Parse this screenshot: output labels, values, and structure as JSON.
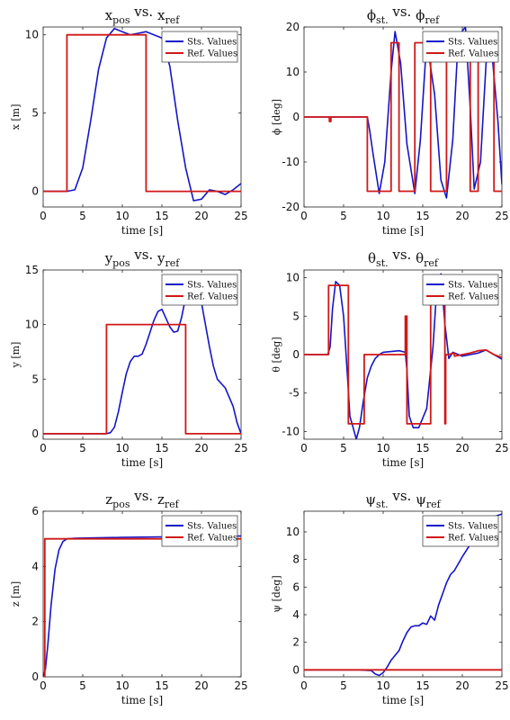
{
  "colors": {
    "sts": "#1515c8",
    "ref": "#d01818"
  },
  "legend": {
    "sts": "Sts. Values",
    "ref": "Ref. Values"
  },
  "chart_data": [
    {
      "type": "line",
      "title": {
        "base": "x",
        "sub": "pos",
        "mid": " vs. ",
        "base2": "x",
        "sub2": "ref"
      },
      "xlabel": "time [s]",
      "ylabel": "x [m]",
      "xlim": [
        0,
        25
      ],
      "ylim": [
        -1,
        10.5
      ],
      "xticks": [
        "0",
        "5",
        "10",
        "15",
        "20",
        "25"
      ],
      "yticks": [
        "0",
        "5",
        "10"
      ],
      "legend_position": "top-right",
      "series": [
        {
          "name": "Sts. Values",
          "x": [
            0,
            2,
            3,
            4,
            5,
            6,
            7,
            8,
            9,
            10,
            11,
            12,
            13,
            14,
            15,
            16,
            17,
            18,
            19,
            20,
            21,
            22,
            23,
            24,
            25
          ],
          "y": [
            0,
            0,
            0,
            0.1,
            1.5,
            4.5,
            7.8,
            9.8,
            10.4,
            10.2,
            10,
            10.1,
            10.2,
            10,
            9.8,
            8,
            4.5,
            1.5,
            -0.6,
            -0.5,
            0.1,
            0,
            -0.2,
            0.1,
            0.5
          ]
        },
        {
          "name": "Ref. Values",
          "x": [
            0,
            3,
            3,
            13,
            13,
            25
          ],
          "y": [
            0,
            0,
            10,
            10,
            0,
            0
          ]
        }
      ]
    },
    {
      "type": "line",
      "title": {
        "base": "ϕ",
        "sub": "st.",
        "mid": " vs. ",
        "base2": "ϕ",
        "sub2": "ref"
      },
      "xlabel": "time [s]",
      "ylabel": "ϕ [deg]",
      "xlim": [
        0,
        25
      ],
      "ylim": [
        -20,
        20
      ],
      "xticks": [
        "0",
        "5",
        "10",
        "15",
        "20",
        "25"
      ],
      "yticks": [
        "-20",
        "-10",
        "0",
        "10",
        "20"
      ],
      "legend_position": "top-right",
      "series": [
        {
          "name": "Sts. Values",
          "x": [
            0,
            8,
            8.3,
            8.7,
            9.5,
            10.2,
            11,
            11.5,
            12.2,
            13,
            14,
            14.7,
            15.5,
            16.5,
            17.3,
            18,
            18.8,
            19.5,
            20.4,
            21,
            21.5,
            22.3,
            23,
            23.7,
            24.5,
            25
          ],
          "y": [
            0,
            0,
            -3,
            -8,
            -17,
            -10,
            10,
            19,
            12,
            -6,
            -17,
            -5,
            17,
            5,
            -14,
            -18,
            -5,
            18,
            20,
            2,
            -16,
            -10,
            12,
            15,
            -1,
            -15
          ]
        },
        {
          "name": "Ref. Values",
          "x": [
            0,
            3.2,
            3.2,
            3.4,
            3.4,
            8,
            8,
            10,
            10,
            11,
            11,
            12,
            12,
            13,
            13,
            14,
            14,
            15,
            15,
            16,
            16,
            17,
            17,
            18,
            18,
            19,
            19,
            20,
            20,
            21,
            21,
            22,
            22,
            23,
            23,
            24,
            24,
            25
          ],
          "y": [
            0,
            0,
            -1,
            -1,
            0,
            0,
            -16.5,
            -16.5,
            -16.5,
            -16.5,
            16.5,
            16.5,
            -16.5,
            -16.5,
            -16.5,
            -16.5,
            16.5,
            16.5,
            16.5,
            16.5,
            -16.5,
            -16.5,
            -16.5,
            -16.5,
            16.5,
            16.5,
            16.5,
            16.5,
            16.5,
            16.5,
            -16.5,
            -16.5,
            16.5,
            16.5,
            16.5,
            16.5,
            -16.5,
            -16.5
          ]
        }
      ]
    },
    {
      "type": "line",
      "title": {
        "base": "y",
        "sub": "pos",
        "mid": " vs. ",
        "base2": "y",
        "sub2": "ref"
      },
      "xlabel": "time [s]",
      "ylabel": "y [m]",
      "xlim": [
        0,
        25
      ],
      "ylim": [
        -0.5,
        15
      ],
      "xticks": [
        "0",
        "5",
        "10",
        "15",
        "20",
        "25"
      ],
      "yticks": [
        "0",
        "5",
        "10",
        "15"
      ],
      "legend_position": "top-right",
      "series": [
        {
          "name": "Sts. Values",
          "x": [
            0,
            8,
            8.5,
            9,
            9.5,
            10,
            10.5,
            11,
            11.5,
            12,
            12.5,
            13,
            13.5,
            14,
            14.5,
            15,
            15.5,
            16,
            16.5,
            17,
            17.5,
            18,
            18.5,
            19,
            20,
            21,
            21.5,
            22,
            23,
            24,
            24.5,
            25
          ],
          "y": [
            0,
            0,
            0.1,
            0.6,
            2,
            3.8,
            5.5,
            6.6,
            7.1,
            7.1,
            7.3,
            8.2,
            9.3,
            10.4,
            11.2,
            11.4,
            10.6,
            9.8,
            9.3,
            9.4,
            10.7,
            12.5,
            14,
            14.3,
            12,
            8,
            6.2,
            5,
            4.2,
            2.5,
            1,
            0
          ]
        },
        {
          "name": "Ref. Values",
          "x": [
            0,
            8,
            8,
            18,
            18,
            25
          ],
          "y": [
            0,
            0,
            10,
            10,
            0,
            0
          ]
        }
      ]
    },
    {
      "type": "line",
      "title": {
        "base": "θ",
        "sub": "st.",
        "mid": " vs. ",
        "base2": "θ",
        "sub2": "ref"
      },
      "xlabel": "time [s]",
      "ylabel": "θ [deg]",
      "xlim": [
        0,
        25
      ],
      "ylim": [
        -11,
        11
      ],
      "xticks": [
        "0",
        "5",
        "10",
        "15",
        "20",
        "25"
      ],
      "yticks": [
        "-10",
        "-5",
        "0",
        "5",
        "10"
      ],
      "legend_position": "top-right",
      "series": [
        {
          "name": "Sts. Values",
          "x": [
            0,
            3,
            3.3,
            3.6,
            4,
            4.5,
            5,
            5.5,
            5.8,
            6.2,
            6.6,
            7,
            7.5,
            8,
            8.5,
            9,
            9.5,
            10,
            11,
            12,
            12.8,
            13,
            13.3,
            13.8,
            14.5,
            15.5,
            16.3,
            16.8,
            17.3,
            17.8,
            18.3,
            18.8,
            19.5,
            20,
            21,
            22,
            23,
            24,
            25
          ],
          "y": [
            0,
            0,
            1,
            6,
            9.5,
            9,
            5,
            -3,
            -8,
            -9.5,
            -11,
            -9.5,
            -6,
            -3,
            -1.5,
            -0.5,
            0,
            0.3,
            0.4,
            0.5,
            0.3,
            -2,
            -8,
            -9.5,
            -9.5,
            -7,
            1,
            9,
            10.5,
            4,
            -0.5,
            0.3,
            0,
            -0.2,
            0,
            0.2,
            0.6,
            0,
            -0.6
          ]
        },
        {
          "name": "Ref. Values",
          "x": [
            0,
            3.1,
            3.1,
            5.6,
            5.6,
            7.6,
            7.6,
            12.8,
            12.8,
            13,
            13,
            13.3,
            13.3,
            16,
            16,
            17,
            17,
            17.8,
            17.8,
            17.9,
            17.9,
            18.2,
            18.2,
            19,
            19,
            20,
            21,
            22,
            23,
            24,
            25
          ],
          "y": [
            0,
            0,
            9,
            9,
            -9,
            -9,
            0,
            0,
            5,
            5,
            -9,
            -9,
            -9,
            -9,
            9,
            9,
            9,
            9,
            -9,
            -9,
            0,
            0,
            0,
            0.2,
            -0.2,
            0,
            0.2,
            0.5,
            0.6,
            0,
            -0.4
          ]
        }
      ]
    },
    {
      "type": "line",
      "title": {
        "base": "z",
        "sub": "pos",
        "mid": " vs. ",
        "base2": "z",
        "sub2": "ref"
      },
      "xlabel": "time [s]",
      "ylabel": "z [m]",
      "xlim": [
        0,
        25
      ],
      "ylim": [
        0,
        6
      ],
      "xticks": [
        "0",
        "5",
        "10",
        "15",
        "20",
        "25"
      ],
      "yticks": [
        "0",
        "2",
        "4",
        "6"
      ],
      "legend_position": "top-right",
      "series": [
        {
          "name": "Sts. Values",
          "x": [
            0,
            0.3,
            0.6,
            1,
            1.5,
            2,
            2.5,
            3,
            4,
            6,
            10,
            15,
            20,
            25
          ],
          "y": [
            0,
            0.3,
            1.2,
            2.6,
            3.9,
            4.6,
            4.9,
            5.0,
            5.02,
            5.03,
            5.05,
            5.07,
            5.08,
            5.1
          ]
        },
        {
          "name": "Ref. Values",
          "x": [
            0,
            0.2,
            0.2,
            25
          ],
          "y": [
            0,
            0,
            5,
            5
          ]
        }
      ]
    },
    {
      "type": "line",
      "title": {
        "base": "ψ",
        "sub": "st.",
        "mid": " vs. ",
        "base2": "ψ",
        "sub2": "ref"
      },
      "xlabel": "time [s]",
      "ylabel": "ψ [deg]",
      "xlim": [
        0,
        25
      ],
      "ylim": [
        -0.5,
        11.5
      ],
      "xticks": [
        "0",
        "5",
        "10",
        "15",
        "20",
        "25"
      ],
      "yticks": [
        "0",
        "2",
        "4",
        "6",
        "8",
        "10"
      ],
      "legend_position": "top-right",
      "series": [
        {
          "name": "Sts. Values",
          "x": [
            0,
            7,
            8.5,
            9,
            9.5,
            10,
            10.5,
            11,
            12,
            12.5,
            13,
            13.5,
            14,
            14.5,
            15,
            15.5,
            16,
            16.5,
            17,
            17.5,
            18,
            18.5,
            19,
            20,
            21,
            22,
            23,
            24,
            25
          ],
          "y": [
            0,
            0,
            -0.05,
            -0.3,
            -0.4,
            -0.2,
            0.2,
            0.7,
            1.4,
            2.1,
            2.7,
            3.1,
            3.2,
            3.2,
            3.4,
            3.3,
            3.9,
            3.6,
            4.7,
            5.5,
            6.3,
            6.9,
            7.2,
            8.2,
            9.1,
            10.2,
            10.8,
            11.1,
            11.3
          ]
        },
        {
          "name": "Ref. Values",
          "x": [
            0,
            25
          ],
          "y": [
            0,
            0
          ]
        }
      ]
    }
  ]
}
